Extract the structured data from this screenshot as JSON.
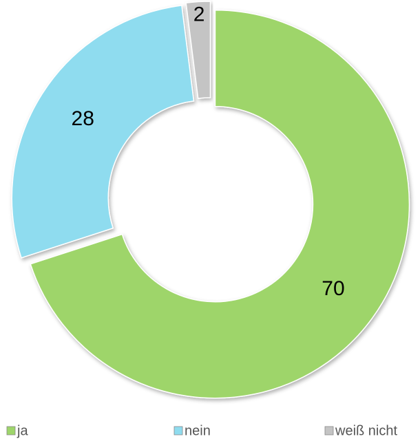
{
  "chart_data": {
    "type": "donut",
    "categories": [
      "ja",
      "nein",
      "weiß nicht"
    ],
    "values": [
      70,
      28,
      2
    ],
    "colors": [
      "#9ed56b",
      "#8fdcef",
      "#c4c4c4"
    ],
    "legend": "bottom"
  }
}
